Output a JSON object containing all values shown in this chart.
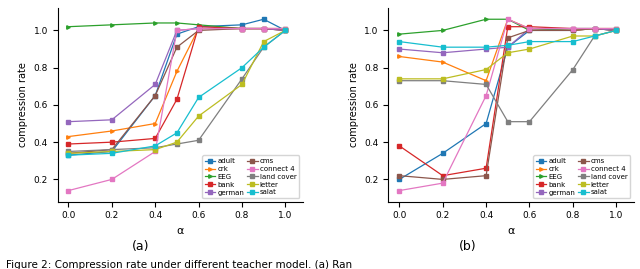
{
  "alpha": [
    0.0,
    0.2,
    0.4,
    0.5,
    0.6,
    0.8,
    0.9,
    1.0
  ],
  "plot_a": {
    "adult": [
      0.33,
      0.35,
      0.65,
      0.98,
      1.02,
      1.03,
      1.06,
      1.0
    ],
    "crk": [
      0.43,
      0.46,
      0.5,
      0.78,
      1.01,
      1.01,
      1.01,
      1.01
    ],
    "EEG": [
      1.02,
      1.03,
      1.04,
      1.04,
      1.03,
      1.01,
      1.01,
      1.0
    ],
    "bank": [
      0.39,
      0.4,
      0.42,
      0.63,
      1.02,
      1.01,
      1.01,
      1.0
    ],
    "german": [
      0.51,
      0.52,
      0.71,
      1.0,
      1.01,
      1.01,
      1.01,
      1.0
    ],
    "cms": [
      0.34,
      0.36,
      0.65,
      0.91,
      1.0,
      1.01,
      1.01,
      1.01
    ],
    "connect_4": [
      0.14,
      0.2,
      0.35,
      1.0,
      1.01,
      1.01,
      1.01,
      1.01
    ],
    "land_cover": [
      0.35,
      0.36,
      0.37,
      0.39,
      0.41,
      0.74,
      0.91,
      1.0
    ],
    "letter": [
      0.34,
      0.35,
      0.36,
      0.4,
      0.54,
      0.71,
      0.94,
      1.0
    ],
    "salat": [
      0.33,
      0.34,
      0.38,
      0.45,
      0.64,
      0.8,
      0.91,
      1.0
    ]
  },
  "plot_b": {
    "adult": [
      0.2,
      0.34,
      0.5,
      0.91,
      1.0,
      1.0,
      1.01,
      1.0
    ],
    "crk": [
      0.86,
      0.83,
      0.73,
      1.06,
      1.01,
      1.0,
      1.01,
      1.01
    ],
    "EEG": [
      0.98,
      1.0,
      1.06,
      1.06,
      1.0,
      1.01,
      1.01,
      1.0
    ],
    "bank": [
      0.38,
      0.22,
      0.26,
      1.02,
      1.02,
      1.01,
      1.01,
      1.0
    ],
    "german": [
      0.9,
      0.88,
      0.9,
      0.91,
      1.01,
      1.01,
      1.01,
      1.0
    ],
    "cms": [
      0.22,
      0.2,
      0.22,
      0.96,
      1.0,
      1.0,
      1.01,
      1.01
    ],
    "connect_4": [
      0.14,
      0.18,
      0.65,
      1.06,
      1.01,
      1.01,
      1.01,
      1.01
    ],
    "land_cover": [
      0.73,
      0.73,
      0.71,
      0.51,
      0.51,
      0.79,
      0.97,
      1.0
    ],
    "letter": [
      0.74,
      0.74,
      0.79,
      0.88,
      0.9,
      0.97,
      0.97,
      1.0
    ],
    "salat": [
      0.94,
      0.91,
      0.91,
      0.92,
      0.94,
      0.94,
      0.97,
      1.0
    ]
  },
  "colors": {
    "adult": "#1f77b4",
    "crk": "#ff7f0e",
    "EEG": "#2ca02c",
    "bank": "#d62728",
    "german": "#9467bd",
    "cms": "#8c564b",
    "connect_4": "#e377c2",
    "land_cover": "#7f7f7f",
    "letter": "#bcbd22",
    "salat": "#17becf"
  },
  "markers": {
    "adult": "s",
    "crk": ">",
    "EEG": ">",
    "bank": "s",
    "german": "s",
    "cms": "s",
    "connect_4": "s",
    "land_cover": "s",
    "letter": "s",
    "salat": "s"
  },
  "xticks": [
    0.0,
    0.2,
    0.4,
    0.6,
    0.8,
    1.0
  ],
  "xtick_labels": [
    "0.0",
    "0.2",
    "0.4",
    "0.6",
    "0.8",
    "1.0"
  ],
  "xlabel": "α",
  "ylabel": "compression rate",
  "yticks": [
    0.2,
    0.4,
    0.6,
    0.8,
    1.0
  ],
  "ytick_labels": [
    "0.2",
    "0.4",
    "0.6",
    "0.8",
    "1.0"
  ],
  "ylim": [
    0.08,
    1.12
  ],
  "label_a": "(a)",
  "label_b": "(b)",
  "caption": "Figure 2: Compression rate under different teacher model. (a) Ran",
  "legend_order": [
    "adult",
    "crk",
    "EEG",
    "bank",
    "german",
    "cms",
    "connect_4",
    "land_cover",
    "letter",
    "salat"
  ],
  "legend_labels": [
    "adult",
    "crk",
    "EEG",
    "bank",
    "german",
    "cms",
    "connect 4",
    "land cover",
    "letter",
    "salat"
  ],
  "bg_color": "#ffffff"
}
